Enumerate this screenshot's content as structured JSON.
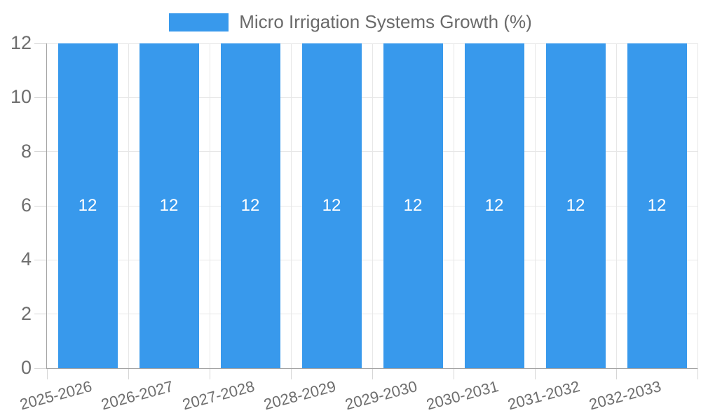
{
  "chart_data": {
    "type": "bar",
    "title": "Micro Irrigation Systems Growth (%)",
    "categories": [
      "2025-2026",
      "2026-2027",
      "2027-2028",
      "2028-2029",
      "2029-2030",
      "2030-2031",
      "2031-2032",
      "2032-2033"
    ],
    "values": [
      12,
      12,
      12,
      12,
      12,
      12,
      12,
      12
    ],
    "bar_labels": [
      "12",
      "12",
      "12",
      "12",
      "12",
      "12",
      "12",
      "12"
    ],
    "xlabel": "",
    "ylabel": "",
    "ylim": [
      0,
      12
    ],
    "yticks": [
      0,
      2,
      4,
      6,
      8,
      10,
      12
    ],
    "grid": true,
    "legend_position": "top",
    "bar_color": "#3899ec",
    "bar_label_color": "#ffffff",
    "axis_text_color": "#6e6e6e",
    "legend_text_color": "#6a6a6a",
    "gridline_color": "#e7e7e7",
    "tick_color": "#d6d6d6",
    "axis_line_color": "#a3a3a3"
  }
}
